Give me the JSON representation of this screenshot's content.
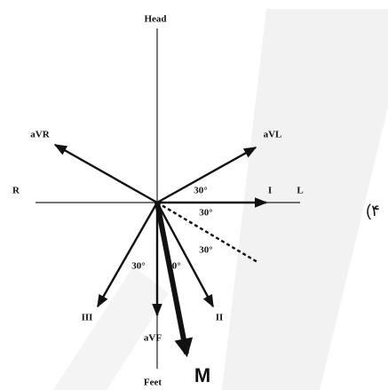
{
  "labels": {
    "head": "Head",
    "avr": "aVR",
    "avl": "aVL",
    "r": "R",
    "i": "I",
    "l": "L",
    "iii": "III",
    "ii": "II",
    "avf": "aVF",
    "feet": "Feet",
    "m": "M",
    "side": "(۴"
  },
  "angles": [
    "30°",
    "30°",
    "30°",
    "30°",
    "30°"
  ]
}
